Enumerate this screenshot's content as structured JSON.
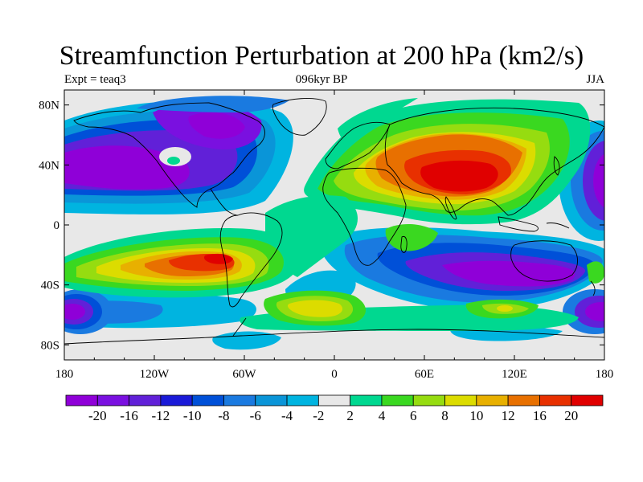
{
  "title": "Streamfunction Perturbation at 200 hPa (km2/s)",
  "subtitle_left": "Expt = teaq3",
  "subtitle_center": "096kyr BP",
  "subtitle_right": "JJA",
  "map": {
    "lon_ticks": [
      "180",
      "120W",
      "60W",
      "0",
      "60E",
      "120E",
      "180"
    ],
    "lon_tick_values": [
      -180,
      -120,
      -60,
      0,
      60,
      120,
      180
    ],
    "lat_ticks": [
      "80N",
      "40N",
      "0",
      "40S",
      "80S"
    ],
    "lat_tick_values": [
      80,
      40,
      0,
      -40,
      -80
    ],
    "lon_range": [
      -180,
      180
    ],
    "lat_range": [
      -90,
      90
    ],
    "background_color": "#e8e8e8",
    "coastline_color": "#000000"
  },
  "colorbar": {
    "labels": [
      "-20",
      "-16",
      "-12",
      "-10",
      "-8",
      "-6",
      "-4",
      "-2",
      "2",
      "4",
      "6",
      "8",
      "10",
      "12",
      "16",
      "20"
    ],
    "colors": [
      "#8f00d8",
      "#7a10e0",
      "#6120d8",
      "#1a1ad8",
      "#0050d8",
      "#1a7ae0",
      "#0a95d8",
      "#00b4e0",
      "#e8e8e8",
      "#00d890",
      "#3ad820",
      "#96dc10",
      "#dcdc00",
      "#e8b000",
      "#e87000",
      "#e83000",
      "#e00000"
    ]
  }
}
